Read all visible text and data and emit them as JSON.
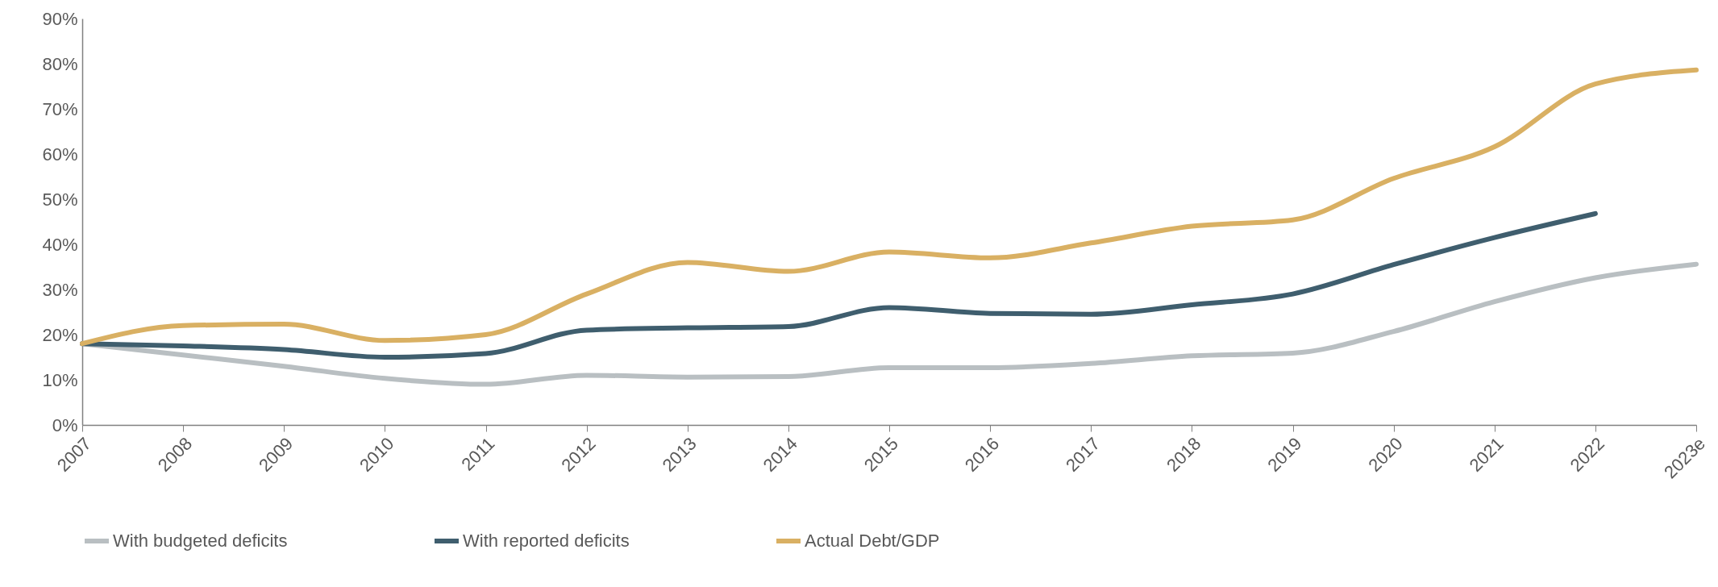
{
  "chart_data": {
    "type": "line",
    "categories": [
      "2007",
      "2008",
      "2009",
      "2010",
      "2011",
      "2012",
      "2013",
      "2014",
      "2015",
      "2016",
      "2017",
      "2018",
      "2019",
      "2020",
      "2021",
      "2022",
      "2023e"
    ],
    "series": [
      {
        "name": "With budgeted deficits",
        "color": "#b9bfc2",
        "values": [
          18,
          15.5,
          13,
          10.3,
          9,
          11,
          10.6,
          10.7,
          12.7,
          12.7,
          13.6,
          15.3,
          15.9,
          20.7,
          27.3,
          32.6,
          35.6
        ]
      },
      {
        "name": "With reported deficits",
        "color": "#3f5e6e",
        "values": [
          18,
          17.5,
          16.7,
          15,
          15.8,
          21,
          21.5,
          21.8,
          26,
          24.7,
          24.5,
          26.6,
          29,
          35.5,
          41.5,
          46.8,
          null
        ]
      },
      {
        "name": "Actual Debt/GDP",
        "color": "#d9b063",
        "values": [
          18,
          22,
          22.3,
          18.7,
          20,
          29,
          36,
          34,
          38.3,
          37,
          40.3,
          44,
          45.4,
          54.6,
          61.6,
          75.5,
          78.6
        ]
      }
    ],
    "ylim": [
      0,
      90
    ],
    "yticks": [
      {
        "value": 0,
        "label": "0%"
      },
      {
        "value": 10,
        "label": "10%"
      },
      {
        "value": 20,
        "label": "20%"
      },
      {
        "value": 30,
        "label": "30%"
      },
      {
        "value": 40,
        "label": "40%"
      },
      {
        "value": 50,
        "label": "50%"
      },
      {
        "value": 60,
        "label": "60%"
      },
      {
        "value": 70,
        "label": "70%"
      },
      {
        "value": 80,
        "label": "80%"
      },
      {
        "value": 90,
        "label": "90%"
      }
    ],
    "grid": false,
    "legend": "bottom",
    "marker": "none",
    "line_style": "solid"
  }
}
